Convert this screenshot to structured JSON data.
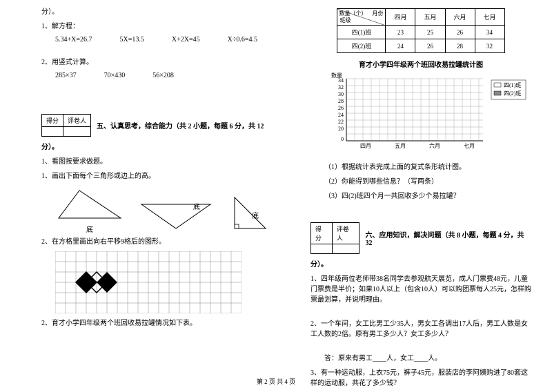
{
  "left": {
    "fen1": "分）。",
    "q1": "1、解方程：",
    "eq1": [
      "5.34+X=26.7",
      "5X=13.5",
      "X+2X=45",
      "X÷0.6=4.5"
    ],
    "q2": "2、用竖式计算。",
    "eq2": [
      "285×37",
      "70×430",
      "56×208"
    ],
    "scoreLabel1": "得分",
    "scoreLabel2": "评卷人",
    "section5": "五、认真思考，综合能力（共 2 小题，每题 6 分，共 12",
    "fen2": "分）。",
    "q1_1": "1、看图按要求做题。",
    "q1_1a": "1、画出下面每个三角形或边上的高。",
    "triLabel": "底",
    "q2_2": "2、在方格里画出向右平移9格后的图形。",
    "q2_3": "2、育才小学四年级两个班回收易拉罐情况如下表。"
  },
  "right": {
    "table": {
      "diagTop": "月份",
      "diagBottom": "数量（个）",
      "diagSide": "班级",
      "headers": [
        "四月",
        "五月",
        "六月",
        "七月"
      ],
      "rows": [
        {
          "label": "四(1)班",
          "vals": [
            "23",
            "25",
            "26",
            "34"
          ]
        },
        {
          "label": "四(2)班",
          "vals": [
            "24",
            "26",
            "28",
            "32"
          ]
        }
      ]
    },
    "chartTitle": "育才小学四年级两个班回收易拉罐统计图",
    "legend1": "四(1)班",
    "legend2": "四(2)班",
    "yLabel": "数量",
    "yTicks": [
      "34",
      "32",
      "30",
      "28",
      "26",
      "24",
      "22",
      "20",
      "0"
    ],
    "xTicks": [
      "四月",
      "五月",
      "六月",
      "七月"
    ],
    "q_sub1": "（1）根据统计表完成上面的复式条形统计图。",
    "q_sub2": "（2）你能得到哪些信息？（写两条）",
    "q_sub3": "（3）四(2)班四个月一共回收多少个易拉罐？",
    "scoreLabel1": "得分",
    "scoreLabel2": "评卷人",
    "section6": "六、应用知识，解决问题（共 8 小题，每题 4 分，共 32",
    "fen": "分）。",
    "p1": "1、四年级两位老师带38名同学去参观航天展览，成人门票费48元，儿童门票费是半价；如果10人以上（包含10人）可以购团票每人25元，怎样购票最划算，并说明理由。",
    "p2": "2、一个车间，女工比男工少35人，男女工各调出17人后，男工人数是女工人数的2倍。原有男工多少人？女工多少人？",
    "p2ans": "答：原来有男工____人，女工____人。",
    "p3": "3、有一种运动服，上衣75元，裤子45元，服装店的李阿姨购进了80套这样的运动服，共花了多少钱？"
  },
  "footer": "第 2 页 共 4 页",
  "colors": {
    "gridLine": "#888",
    "shape": "#000"
  }
}
